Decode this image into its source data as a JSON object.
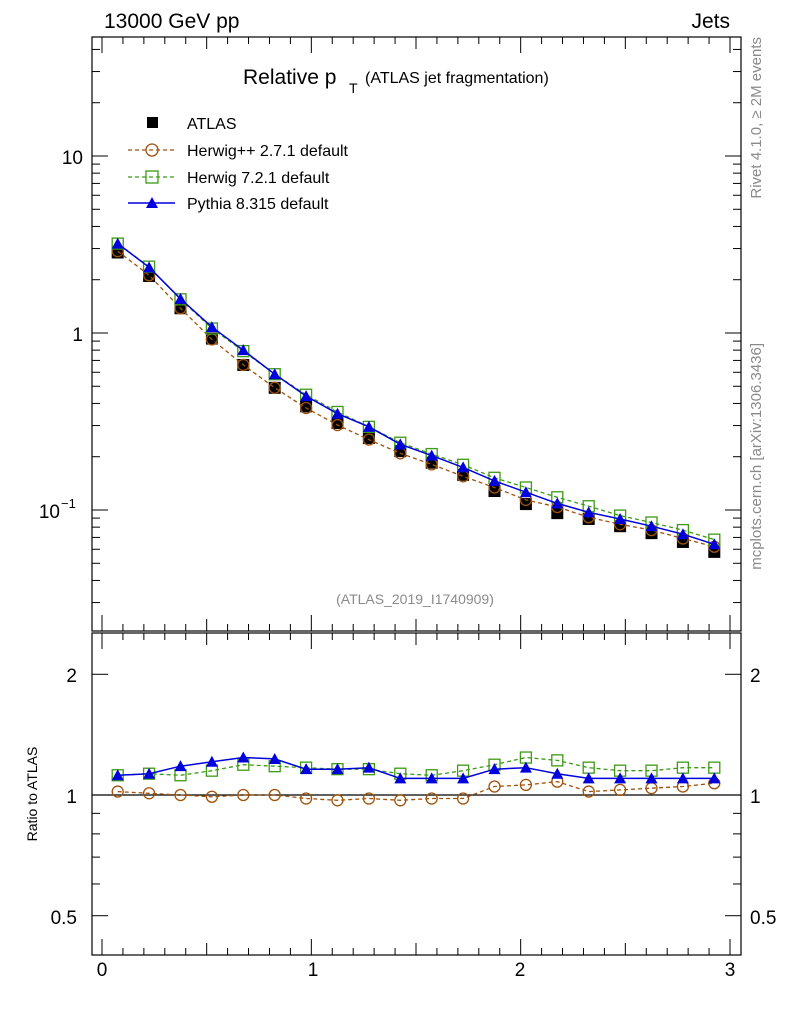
{
  "header": {
    "left": "13000 GeV pp",
    "right": "Jets"
  },
  "side": {
    "top": "Rivet 4.1.0, ≥ 2M events",
    "bottom": "mcplots.cern.ch [arXiv:1306.3436]"
  },
  "colors": {
    "atlas": "#000000",
    "herwigpp": "#a0520a",
    "herwig7": "#3c9a14",
    "pythia": "#0000dd"
  },
  "chart_data": [
    {
      "type": "scatter",
      "title": "Relative p",
      "title_sub": "T",
      "title_suffix": "(ATLAS jet fragmentation)",
      "annotation": "(ATLAS_2019_I1740909)",
      "yscale": "log",
      "xlim": [
        0,
        3
      ],
      "ylim": [
        0.025,
        50
      ],
      "ytick_labels": {
        "ten": "10",
        "one": "1",
        "tenth_base": "10",
        "tenth_exp": "−1"
      },
      "x": [
        0.075,
        0.225,
        0.375,
        0.525,
        0.675,
        0.825,
        0.975,
        1.125,
        1.275,
        1.425,
        1.575,
        1.725,
        1.875,
        2.025,
        2.175,
        2.325,
        2.475,
        2.625,
        2.775,
        2.925
      ],
      "legend": [
        "ATLAS",
        "Herwig++ 2.7.1 default",
        "Herwig 7.2.1 default",
        "Pythia 8.315 default"
      ],
      "series": [
        {
          "name": "ATLAS",
          "values": [
            2.85,
            2.1,
            1.38,
            0.93,
            0.66,
            0.49,
            0.385,
            0.31,
            0.255,
            0.215,
            0.185,
            0.158,
            0.128,
            0.108,
            0.096,
            0.089,
            0.081,
            0.074,
            0.066,
            0.058
          ]
        },
        {
          "name": "Herwig++ 2.7.1 default",
          "values": [
            2.9,
            2.12,
            1.38,
            0.92,
            0.66,
            0.49,
            0.377,
            0.302,
            0.25,
            0.209,
            0.181,
            0.155,
            0.134,
            0.114,
            0.104,
            0.091,
            0.083,
            0.077,
            0.069,
            0.062
          ]
        },
        {
          "name": "Herwig 7.2.1 default",
          "values": [
            3.2,
            2.37,
            1.55,
            1.06,
            0.79,
            0.585,
            0.448,
            0.358,
            0.295,
            0.24,
            0.207,
            0.18,
            0.152,
            0.134,
            0.118,
            0.105,
            0.093,
            0.085,
            0.077,
            0.068
          ]
        },
        {
          "name": "Pythia 8.315 default",
          "values": [
            3.2,
            2.35,
            1.56,
            1.08,
            0.8,
            0.585,
            0.44,
            0.35,
            0.295,
            0.235,
            0.203,
            0.174,
            0.146,
            0.126,
            0.109,
            0.097,
            0.089,
            0.081,
            0.073,
            0.064
          ]
        }
      ]
    },
    {
      "type": "line",
      "ylabel": "Ratio to ATLAS",
      "ylim": [
        0.4,
        2.4
      ],
      "ytick_labels": [
        "2",
        "1",
        "0.5"
      ],
      "xtick_labels": [
        "0",
        "1",
        "2",
        "3"
      ],
      "x": [
        0.075,
        0.225,
        0.375,
        0.525,
        0.675,
        0.825,
        0.975,
        1.125,
        1.275,
        1.425,
        1.575,
        1.725,
        1.875,
        2.025,
        2.175,
        2.325,
        2.475,
        2.625,
        2.775,
        2.925
      ],
      "series": [
        {
          "name": "Herwig++ 2.7.1 default",
          "values": [
            1.02,
            1.01,
            1.0,
            0.99,
            1.0,
            1.0,
            0.98,
            0.97,
            0.98,
            0.97,
            0.98,
            0.98,
            1.05,
            1.06,
            1.08,
            1.02,
            1.03,
            1.04,
            1.05,
            1.07
          ]
        },
        {
          "name": "Herwig 7.2.1 default",
          "values": [
            1.12,
            1.13,
            1.12,
            1.15,
            1.19,
            1.18,
            1.17,
            1.16,
            1.16,
            1.13,
            1.12,
            1.15,
            1.19,
            1.24,
            1.22,
            1.17,
            1.15,
            1.15,
            1.17,
            1.17
          ]
        },
        {
          "name": "Pythia 8.315 default",
          "values": [
            1.12,
            1.13,
            1.18,
            1.21,
            1.24,
            1.23,
            1.16,
            1.16,
            1.17,
            1.1,
            1.1,
            1.1,
            1.16,
            1.17,
            1.13,
            1.1,
            1.1,
            1.1,
            1.1,
            1.1
          ]
        }
      ]
    }
  ]
}
